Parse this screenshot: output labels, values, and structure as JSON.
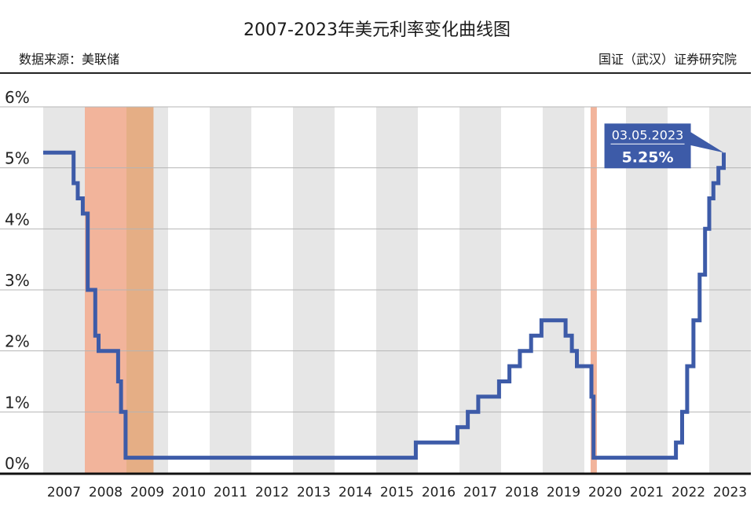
{
  "header": {
    "title": "2007-2023年美元利率变化曲线图",
    "source": "数据来源：美联储",
    "credit": "国证（武汉）证券研究院"
  },
  "callout": {
    "date": "03.05.2023",
    "value": "5.25%"
  },
  "colors": {
    "line": "#3d5ba8",
    "band_gray": "#e6e6e6",
    "recession": "#f2b49b",
    "recession_dark": "#e5ae85",
    "callout_bg": "#3d5ba8"
  },
  "chart_data": {
    "type": "line",
    "title": "2007-2023年美元利率变化曲线图",
    "xlabel": "",
    "ylabel": "",
    "categories": [
      "2007",
      "2008",
      "2009",
      "2010",
      "2011",
      "2012",
      "2013",
      "2014",
      "2015",
      "2016",
      "2017",
      "2018",
      "2019",
      "2020",
      "2021",
      "2022",
      "2023"
    ],
    "y_ticks": [
      "0%",
      "1%",
      "2%",
      "3%",
      "4%",
      "5%",
      "6%"
    ],
    "ylim": [
      0,
      6
    ],
    "xlim": [
      2007,
      2024
    ],
    "step": true,
    "series": [
      {
        "values": [
          [
            2007.0,
            5.25
          ],
          [
            2007.73,
            5.25
          ],
          [
            2007.73,
            4.75
          ],
          [
            2007.83,
            4.75
          ],
          [
            2007.83,
            4.5
          ],
          [
            2007.95,
            4.5
          ],
          [
            2007.95,
            4.25
          ],
          [
            2008.07,
            4.25
          ],
          [
            2008.07,
            3.0
          ],
          [
            2008.25,
            3.0
          ],
          [
            2008.25,
            2.25
          ],
          [
            2008.33,
            2.25
          ],
          [
            2008.33,
            2.0
          ],
          [
            2008.8,
            2.0
          ],
          [
            2008.8,
            1.5
          ],
          [
            2008.87,
            1.5
          ],
          [
            2008.87,
            1.0
          ],
          [
            2008.98,
            1.0
          ],
          [
            2008.98,
            0.25
          ],
          [
            2015.95,
            0.25
          ],
          [
            2015.95,
            0.5
          ],
          [
            2016.95,
            0.5
          ],
          [
            2016.95,
            0.75
          ],
          [
            2017.2,
            0.75
          ],
          [
            2017.2,
            1.0
          ],
          [
            2017.45,
            1.0
          ],
          [
            2017.45,
            1.25
          ],
          [
            2017.95,
            1.25
          ],
          [
            2017.95,
            1.5
          ],
          [
            2018.2,
            1.5
          ],
          [
            2018.2,
            1.75
          ],
          [
            2018.45,
            1.75
          ],
          [
            2018.45,
            2.0
          ],
          [
            2018.72,
            2.0
          ],
          [
            2018.72,
            2.25
          ],
          [
            2018.97,
            2.25
          ],
          [
            2018.97,
            2.5
          ],
          [
            2019.55,
            2.5
          ],
          [
            2019.55,
            2.25
          ],
          [
            2019.7,
            2.25
          ],
          [
            2019.7,
            2.0
          ],
          [
            2019.82,
            2.0
          ],
          [
            2019.82,
            1.75
          ],
          [
            2020.17,
            1.75
          ],
          [
            2020.17,
            1.25
          ],
          [
            2020.22,
            1.25
          ],
          [
            2020.22,
            0.25
          ],
          [
            2022.2,
            0.25
          ],
          [
            2022.2,
            0.5
          ],
          [
            2022.35,
            0.5
          ],
          [
            2022.35,
            1.0
          ],
          [
            2022.47,
            1.0
          ],
          [
            2022.47,
            1.75
          ],
          [
            2022.62,
            1.75
          ],
          [
            2022.62,
            2.5
          ],
          [
            2022.77,
            2.5
          ],
          [
            2022.77,
            3.25
          ],
          [
            2022.9,
            3.25
          ],
          [
            2022.9,
            4.0
          ],
          [
            2023.0,
            4.0
          ],
          [
            2023.0,
            4.5
          ],
          [
            2023.1,
            4.5
          ],
          [
            2023.1,
            4.75
          ],
          [
            2023.22,
            4.75
          ],
          [
            2023.22,
            5.0
          ],
          [
            2023.35,
            5.0
          ],
          [
            2023.35,
            5.25
          ]
        ]
      }
    ],
    "recessions": [
      [
        2008.0,
        2009.0
      ],
      [
        2009.0,
        2009.65
      ],
      [
        2020.15,
        2020.3
      ]
    ],
    "annotations": [
      {
        "x": 2023.35,
        "y": 5.25,
        "text": "03.05.2023 5.25%"
      }
    ],
    "grid": true,
    "legend": "none"
  }
}
